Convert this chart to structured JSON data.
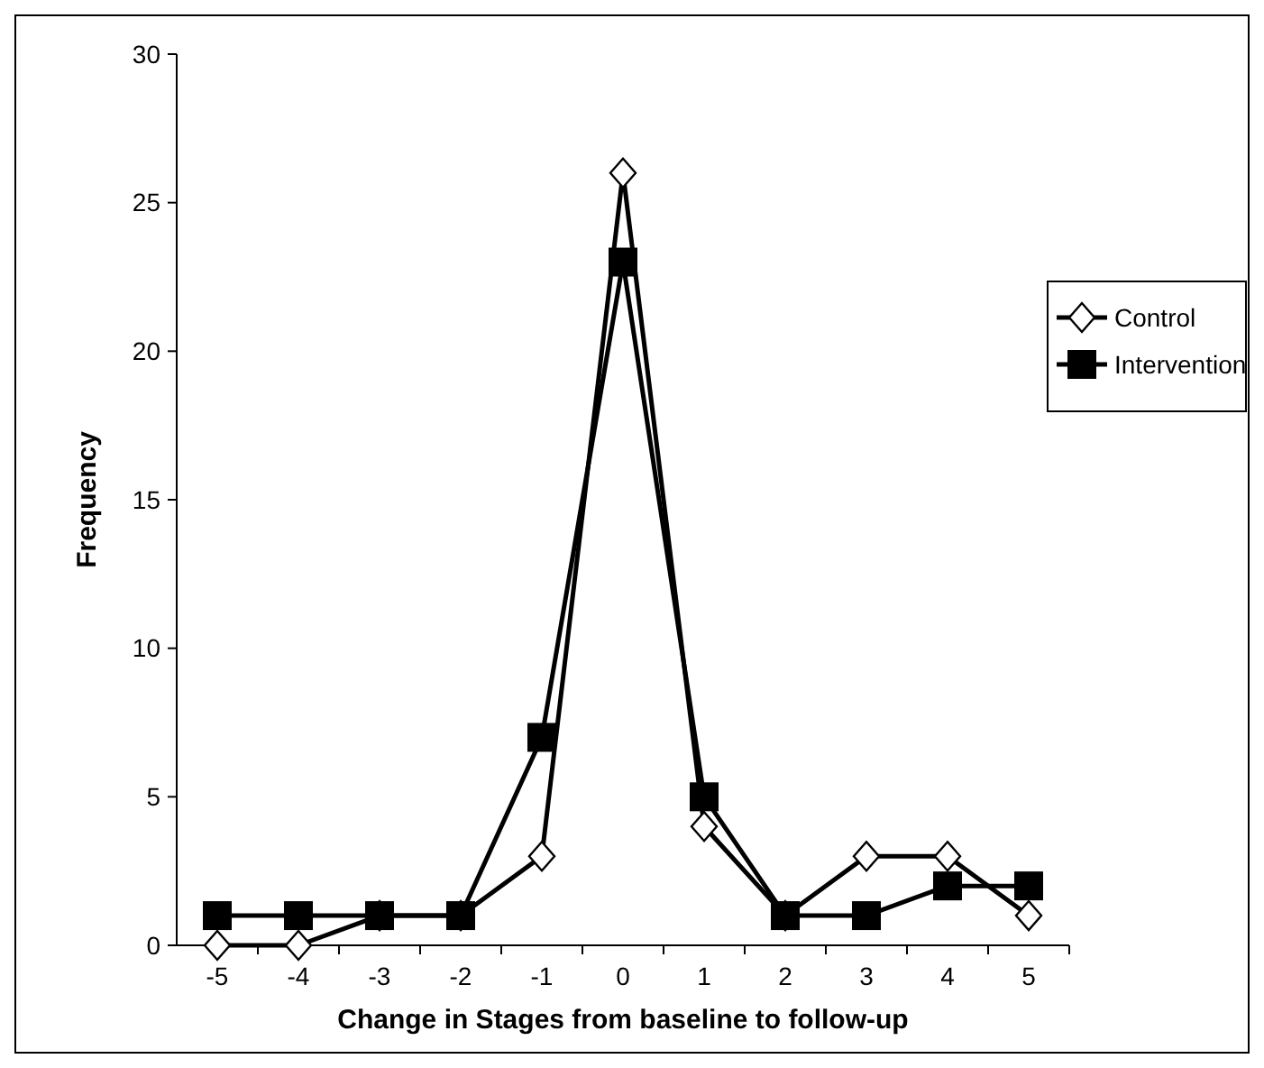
{
  "chart_data": {
    "type": "line",
    "xlabel": "Change in Stages from baseline to follow-up",
    "ylabel": "Frequency",
    "categories": [
      "-5",
      "-4",
      "-3",
      "-2",
      "-1",
      "0",
      "1",
      "2",
      "3",
      "4",
      "5"
    ],
    "ylim": [
      0,
      30
    ],
    "yticks": [
      0,
      5,
      10,
      15,
      20,
      25,
      30
    ],
    "grid": false,
    "legend": "right",
    "series": [
      {
        "name": "Control",
        "color": "#000000",
        "marker": "diamond",
        "values": [
          0,
          0,
          1,
          1,
          3,
          26,
          4,
          1,
          3,
          3,
          1
        ]
      },
      {
        "name": "Intervention",
        "color": "#000000",
        "marker": "square",
        "values": [
          1,
          1,
          1,
          1,
          7,
          23,
          5,
          1,
          1,
          2,
          2
        ]
      }
    ]
  }
}
